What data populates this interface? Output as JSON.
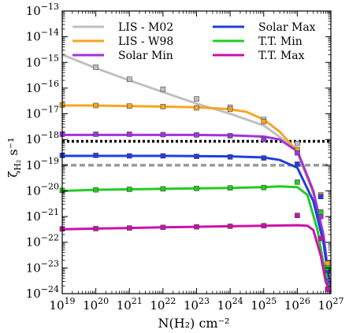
{
  "chart_data": {
    "type": "line",
    "x_scale": "log",
    "y_scale": "log",
    "xlim": [
      1e+19,
      1e+27
    ],
    "ylim": [
      1e-24,
      1e-13
    ],
    "xlabel": "N(H₂) cm⁻²",
    "ylabel_main": "ζ",
    "ylabel_sub": "H₂",
    "ylabel_unit": " s⁻¹",
    "x_tick_exponents": [
      19,
      20,
      21,
      22,
      23,
      24,
      25,
      26,
      27
    ],
    "y_tick_exponents": [
      -24,
      -23,
      -22,
      -21,
      -20,
      -19,
      -18,
      -17,
      -16,
      -15,
      -14,
      -13
    ],
    "tick_base": "10",
    "legend_placement": "top",
    "reference_lines": [
      {
        "y": 8.5e-19,
        "color": "#000000",
        "style": "dotted"
      },
      {
        "y": 1e-19,
        "color": "#999999",
        "style": "dashed"
      }
    ],
    "series": [
      {
        "name": "LIS - M02",
        "color": "#c0c0c0",
        "x": [
          1e+19,
          1e+20,
          1e+21,
          1e+22,
          1e+23,
          1e+24,
          1e+25,
          1e+26,
          3e+26,
          6e+26,
          1e+27
        ],
        "y": [
          2e-15,
          6e-16,
          2e-16,
          7e-17,
          2.5e-17,
          1e-17,
          3.5e-18,
          4e-19,
          1e-20,
          1e-22,
          1e-24
        ],
        "markers_x": [
          1e+20,
          1e+21,
          1e+22,
          1e+23,
          1e+24,
          1e+25,
          1e+26,
          5e+26,
          8e+26
        ],
        "markers_y": [
          6.5e-16,
          2.2e-16,
          9e-17,
          3.8e-17,
          1.8e-17,
          6e-18,
          7e-19,
          6e-21,
          1.5e-23
        ]
      },
      {
        "name": "LIS - W98",
        "color": "#f5a623",
        "x": [
          1e+19,
          1e+20,
          1e+21,
          1e+22,
          1e+23,
          1e+24,
          3e+24,
          1e+25,
          3e+25,
          1e+26,
          3e+26,
          6e+26,
          1e+27
        ],
        "y": [
          2.1e-17,
          2.1e-17,
          2e-17,
          1.9e-17,
          1.8e-17,
          1.5e-17,
          1.2e-17,
          6e-18,
          2e-18,
          3.5e-19,
          8e-21,
          1.5e-22,
          1e-24
        ],
        "markers_x": [
          1e+19,
          1e+20,
          1e+21,
          1e+22,
          1e+23,
          1e+24,
          1e+25,
          1e+26,
          5e+26,
          8e+26
        ],
        "markers_y": [
          2.2e-17,
          2.1e-17,
          2e-17,
          1.9e-17,
          1.7e-17,
          1.5e-17,
          5e-18,
          4e-19,
          7e-21,
          1.5e-23
        ]
      },
      {
        "name": "Solar Min",
        "color": "#a033e0",
        "x": [
          1e+19,
          1e+20,
          1e+21,
          1e+22,
          1e+23,
          1e+24,
          1e+25,
          3e+25,
          1e+26,
          3e+26,
          6e+26,
          1e+27
        ],
        "y": [
          1.5e-18,
          1.5e-18,
          1.5e-18,
          1.5e-18,
          1.5e-18,
          1.45e-18,
          1.3e-18,
          1e-18,
          3.5e-19,
          1e-20,
          2e-22,
          1e-24
        ],
        "markers_x": [
          1e+19,
          1e+20,
          1e+21,
          1e+22,
          1e+23,
          1e+24,
          1e+25,
          1e+26,
          5e+26,
          8e+26
        ],
        "markers_y": [
          1.6e-18,
          1.6e-18,
          1.6e-18,
          1.55e-18,
          1.5e-18,
          1.4e-18,
          1e-18,
          3e-19,
          1e-21,
          3e-24
        ]
      },
      {
        "name": "Solar Max",
        "color": "#1f3fe0",
        "x": [
          1e+19,
          1e+20,
          1e+21,
          1e+22,
          1e+23,
          1e+24,
          1e+25,
          3e+25,
          1e+26,
          3e+26,
          6e+26,
          1e+27
        ],
        "y": [
          2.3e-19,
          2.3e-19,
          2.3e-19,
          2.3e-19,
          2.25e-19,
          2.2e-19,
          2e-19,
          1.6e-19,
          8e-20,
          4e-21,
          1e-22,
          1e-24
        ],
        "markers_x": [
          1e+19,
          1e+20,
          1e+21,
          1e+22,
          1e+23,
          1e+24,
          1e+25,
          1e+26,
          5e+26,
          8e+26
        ],
        "markers_y": [
          2.4e-19,
          2.4e-19,
          2.3e-19,
          2.3e-19,
          2.2e-19,
          2.1e-19,
          1.9e-19,
          1.1e-19,
          6e-21,
          8e-24
        ]
      },
      {
        "name": "T.T. Min",
        "color": "#22cc22",
        "x": [
          1e+19,
          1e+20,
          1e+21,
          1e+22,
          1e+23,
          1e+24,
          1e+25,
          3e+25,
          1e+26,
          2e+26,
          4e+26,
          6e+26,
          1e+27
        ],
        "y": [
          1e-20,
          1.1e-20,
          1.15e-20,
          1.2e-20,
          1.25e-20,
          1.3e-20,
          1.4e-20,
          1.5e-20,
          1.4e-20,
          7e-21,
          3e-22,
          1.5e-23,
          1e-24
        ],
        "markers_x": [
          1e+19,
          1e+20,
          1e+21,
          1e+22,
          1e+23,
          1e+24,
          1e+25,
          1e+26,
          5e+26,
          8e+26
        ],
        "markers_y": [
          1.05e-20,
          1.1e-20,
          1.15e-20,
          1.2e-20,
          1.25e-20,
          1.3e-20,
          1.35e-20,
          2.2e-20,
          1.5e-21,
          1e-23
        ]
      },
      {
        "name": "T.T. Max",
        "color": "#cc11aa",
        "x": [
          1e+19,
          1e+20,
          1e+21,
          1e+22,
          1e+23,
          1e+24,
          1e+25,
          1e+26,
          2e+26,
          3e+26,
          5e+26,
          7e+26,
          1e+27
        ],
        "y": [
          3.2e-22,
          3.4e-22,
          3.6e-22,
          3.8e-22,
          4e-22,
          4.2e-22,
          4.4e-22,
          4.6e-22,
          4.4e-22,
          3e-22,
          3e-23,
          3e-24,
          1e-24
        ],
        "markers_x": [
          1e+19,
          1e+20,
          1e+21,
          1e+22,
          1e+23,
          1e+24,
          1e+25,
          1e+26,
          5e+26,
          8e+26
        ],
        "markers_y": [
          3.3e-22,
          3.4e-22,
          3.6e-22,
          3.8e-22,
          4e-22,
          4.2e-22,
          4.4e-22,
          1.1e-21,
          1.4e-22,
          1.5e-24
        ]
      }
    ]
  }
}
